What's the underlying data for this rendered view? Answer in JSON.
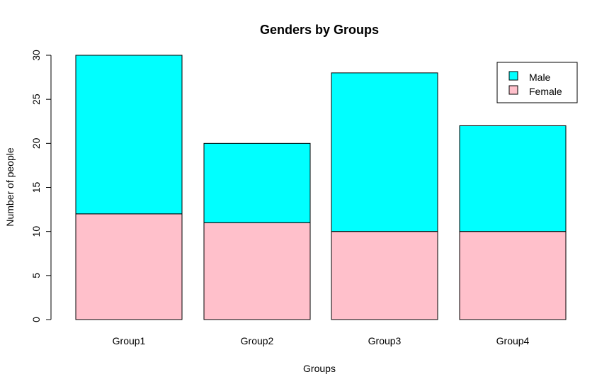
{
  "chart_data": {
    "type": "bar",
    "stacked": true,
    "title": "Genders by Groups",
    "xlabel": "Groups",
    "ylabel": "Number of people",
    "categories": [
      "Group1",
      "Group2",
      "Group3",
      "Group4"
    ],
    "ylim": [
      0,
      30
    ],
    "yticks": [
      "0",
      "5",
      "10",
      "15",
      "20",
      "25",
      "30"
    ],
    "series": [
      {
        "name": "Female",
        "color": "#FFC0CB",
        "values": [
          12,
          11,
          10,
          10
        ]
      },
      {
        "name": "Male",
        "color": "#00FFFF",
        "values": [
          18,
          9,
          18,
          12
        ]
      }
    ],
    "legend": {
      "position": "top-right",
      "items": [
        {
          "label": "Male",
          "color": "#00FFFF"
        },
        {
          "label": "Female",
          "color": "#FFC0CB"
        }
      ]
    },
    "grid": false
  }
}
